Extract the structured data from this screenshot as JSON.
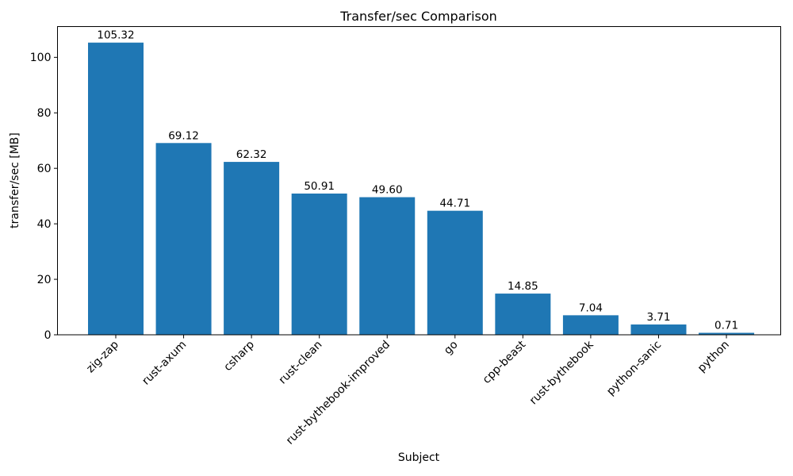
{
  "chart_data": {
    "type": "bar",
    "title": "Transfer/sec Comparison",
    "xlabel": "Subject",
    "ylabel": "transfer/sec [MB]",
    "categories": [
      "zig-zap",
      "rust-axum",
      "csharp",
      "rust-clean",
      "rust-bythebook-improved",
      "go",
      "cpp-beast",
      "rust-bythebook",
      "python-sanic",
      "python"
    ],
    "values": [
      105.32,
      69.12,
      62.32,
      50.91,
      49.6,
      44.71,
      14.85,
      7.04,
      3.71,
      0.71
    ],
    "value_labels": [
      "105.32",
      "69.12",
      "62.32",
      "50.91",
      "49.60",
      "44.71",
      "14.85",
      "7.04",
      "3.71",
      "0.71"
    ],
    "yticks": [
      0,
      20,
      40,
      60,
      80,
      100
    ],
    "ylim": [
      0,
      111.1
    ],
    "bar_color": "#1f77b4",
    "axis_color": "#000000",
    "text_color": "#000000",
    "grid": false,
    "legend": null,
    "x_tick_rotation_deg": 45
  }
}
